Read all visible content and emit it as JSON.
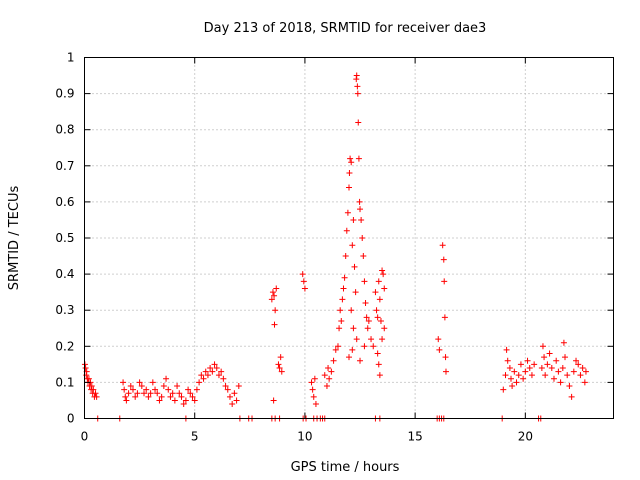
{
  "chart_data": {
    "type": "scatter",
    "title": "Day 213 of 2018, SRMTID for receiver dae3",
    "xlabel": "GPS time / hours",
    "ylabel": "SRMTID / TECUs",
    "xlim": [
      0,
      24
    ],
    "ylim": [
      0,
      1
    ],
    "xticks": [
      0,
      5,
      10,
      15,
      20
    ],
    "yticks": [
      0,
      0.1,
      0.2,
      0.3,
      0.4,
      0.5,
      0.6,
      0.7,
      0.8,
      0.9,
      1
    ],
    "marker": "+",
    "color": "#ff0000",
    "grid": true,
    "series": [
      {
        "name": "SRMTID",
        "points": [
          [
            0.02,
            0.15
          ],
          [
            0.05,
            0.14
          ],
          [
            0.08,
            0.12
          ],
          [
            0.1,
            0.13
          ],
          [
            0.13,
            0.11
          ],
          [
            0.16,
            0.1
          ],
          [
            0.2,
            0.11
          ],
          [
            0.23,
            0.09
          ],
          [
            0.27,
            0.1
          ],
          [
            0.3,
            0.08
          ],
          [
            0.33,
            0.09
          ],
          [
            0.37,
            0.07
          ],
          [
            0.4,
            0.08
          ],
          [
            0.45,
            0.06
          ],
          [
            0.5,
            0.07
          ],
          [
            0.55,
            0.06
          ],
          [
            0.6,
            0
          ],
          [
            1.6,
            0
          ],
          [
            1.75,
            0.1
          ],
          [
            1.8,
            0.08
          ],
          [
            1.85,
            0.06
          ],
          [
            1.9,
            0.05
          ],
          [
            2.0,
            0.07
          ],
          [
            2.1,
            0.09
          ],
          [
            2.2,
            0.08
          ],
          [
            2.3,
            0.06
          ],
          [
            2.4,
            0.07
          ],
          [
            2.5,
            0.1
          ],
          [
            2.6,
            0.09
          ],
          [
            2.7,
            0.07
          ],
          [
            2.8,
            0.08
          ],
          [
            2.9,
            0.06
          ],
          [
            3.0,
            0.07
          ],
          [
            3.1,
            0.1
          ],
          [
            3.2,
            0.08
          ],
          [
            3.3,
            0.07
          ],
          [
            3.4,
            0.05
          ],
          [
            3.5,
            0.06
          ],
          [
            3.6,
            0.09
          ],
          [
            3.7,
            0.11
          ],
          [
            3.8,
            0.08
          ],
          [
            3.9,
            0.06
          ],
          [
            4.0,
            0.07
          ],
          [
            4.1,
            0.05
          ],
          [
            4.2,
            0.09
          ],
          [
            4.3,
            0.07
          ],
          [
            4.4,
            0.06
          ],
          [
            4.5,
            0.04
          ],
          [
            4.6,
            0.05
          ],
          [
            4.6,
            0
          ],
          [
            4.7,
            0.08
          ],
          [
            4.8,
            0.07
          ],
          [
            4.9,
            0.06
          ],
          [
            5.0,
            0.05
          ],
          [
            5.1,
            0.08
          ],
          [
            5.2,
            0.1
          ],
          [
            5.3,
            0.12
          ],
          [
            5.4,
            0.11
          ],
          [
            5.5,
            0.13
          ],
          [
            5.6,
            0.12
          ],
          [
            5.7,
            0.14
          ],
          [
            5.8,
            0.13
          ],
          [
            5.9,
            0.15
          ],
          [
            6.0,
            0.14
          ],
          [
            6.1,
            0.12
          ],
          [
            6.2,
            0.13
          ],
          [
            6.3,
            0.11
          ],
          [
            6.4,
            0.09
          ],
          [
            6.5,
            0.08
          ],
          [
            6.6,
            0.06
          ],
          [
            6.7,
            0.04
          ],
          [
            6.8,
            0.07
          ],
          [
            6.9,
            0.05
          ],
          [
            7.0,
            0.09
          ],
          [
            7.05,
            0
          ],
          [
            7.45,
            0
          ],
          [
            7.6,
            0
          ],
          [
            8.5,
            0.33
          ],
          [
            8.55,
            0.35
          ],
          [
            8.6,
            0.34
          ],
          [
            8.65,
            0.3
          ],
          [
            8.7,
            0.36
          ],
          [
            8.62,
            0.26
          ],
          [
            8.58,
            0.05
          ],
          [
            8.5,
            0
          ],
          [
            8.65,
            0
          ],
          [
            8.8,
            0.15
          ],
          [
            8.85,
            0.14
          ],
          [
            8.9,
            0.17
          ],
          [
            8.95,
            0.13
          ],
          [
            8.85,
            0
          ],
          [
            9.9,
            0.4
          ],
          [
            9.95,
            0.38
          ],
          [
            10.0,
            0.36
          ],
          [
            9.92,
            0
          ],
          [
            10.05,
            0
          ],
          [
            10.3,
            0.1
          ],
          [
            10.35,
            0.08
          ],
          [
            10.4,
            0.06
          ],
          [
            10.45,
            0.11
          ],
          [
            10.5,
            0.04
          ],
          [
            10.4,
            0
          ],
          [
            10.55,
            0
          ],
          [
            10.7,
            0
          ],
          [
            10.8,
            0
          ],
          [
            10.9,
            0
          ],
          [
            10.9,
            0.12
          ],
          [
            11.0,
            0.09
          ],
          [
            11.05,
            0.14
          ],
          [
            11.1,
            0.11
          ],
          [
            11.2,
            0.13
          ],
          [
            11.3,
            0.16
          ],
          [
            11.4,
            0.19
          ],
          [
            11.5,
            0.2
          ],
          [
            11.55,
            0.25
          ],
          [
            11.6,
            0.3
          ],
          [
            11.65,
            0.27
          ],
          [
            11.7,
            0.33
          ],
          [
            11.75,
            0.36
          ],
          [
            11.8,
            0.39
          ],
          [
            11.85,
            0.45
          ],
          [
            11.9,
            0.52
          ],
          [
            11.95,
            0.57
          ],
          [
            12.0,
            0.64
          ],
          [
            12.02,
            0.68
          ],
          [
            12.05,
            0.72
          ],
          [
            12.1,
            0.71
          ],
          [
            12.15,
            0.48
          ],
          [
            12.2,
            0.55
          ],
          [
            12.25,
            0.42
          ],
          [
            12.3,
            0.35
          ],
          [
            12.33,
            0.94
          ],
          [
            12.35,
            0.95
          ],
          [
            12.38,
            0.92
          ],
          [
            12.4,
            0.9
          ],
          [
            12.42,
            0.82
          ],
          [
            12.45,
            0.72
          ],
          [
            12.48,
            0.6
          ],
          [
            12.5,
            0.58
          ],
          [
            12.55,
            0.55
          ],
          [
            12.6,
            0.5
          ],
          [
            12.65,
            0.45
          ],
          [
            12.7,
            0.38
          ],
          [
            12.75,
            0.32
          ],
          [
            12.8,
            0.28
          ],
          [
            12.85,
            0.25
          ],
          [
            12.1,
            0.3
          ],
          [
            12.2,
            0.25
          ],
          [
            12.0,
            0.17
          ],
          [
            12.15,
            0.19
          ],
          [
            12.35,
            0.22
          ],
          [
            12.5,
            0.16
          ],
          [
            12.7,
            0.2
          ],
          [
            12.9,
            0.27
          ],
          [
            13.0,
            0.22
          ],
          [
            13.1,
            0.2
          ],
          [
            13.2,
            0.35
          ],
          [
            13.25,
            0.3
          ],
          [
            13.3,
            0.28
          ],
          [
            13.35,
            0.38
          ],
          [
            13.4,
            0.33
          ],
          [
            13.45,
            0.27
          ],
          [
            13.5,
            0.41
          ],
          [
            13.55,
            0.4
          ],
          [
            13.6,
            0.36
          ],
          [
            13.3,
            0.18
          ],
          [
            13.35,
            0.15
          ],
          [
            13.4,
            0.12
          ],
          [
            13.5,
            0.22
          ],
          [
            13.6,
            0.25
          ],
          [
            13.2,
            0
          ],
          [
            13.4,
            0
          ],
          [
            16.05,
            0.22
          ],
          [
            16.1,
            0.19
          ],
          [
            16.25,
            0.48
          ],
          [
            16.3,
            0.44
          ],
          [
            16.32,
            0.38
          ],
          [
            16.35,
            0.28
          ],
          [
            16.38,
            0.17
          ],
          [
            16.4,
            0.13
          ],
          [
            16.0,
            0
          ],
          [
            16.1,
            0
          ],
          [
            16.2,
            0
          ],
          [
            16.3,
            0
          ],
          [
            18.95,
            0
          ],
          [
            19.0,
            0.08
          ],
          [
            19.1,
            0.12
          ],
          [
            19.15,
            0.19
          ],
          [
            19.2,
            0.16
          ],
          [
            19.3,
            0.14
          ],
          [
            19.35,
            0.11
          ],
          [
            19.4,
            0.09
          ],
          [
            19.5,
            0.13
          ],
          [
            19.6,
            0.1
          ],
          [
            19.7,
            0.12
          ],
          [
            19.8,
            0.15
          ],
          [
            19.9,
            0.11
          ],
          [
            20.0,
            0.13
          ],
          [
            20.1,
            0.16
          ],
          [
            20.2,
            0.14
          ],
          [
            20.3,
            0.12
          ],
          [
            20.4,
            0.15
          ],
          [
            20.6,
            0
          ],
          [
            20.7,
            0
          ],
          [
            20.75,
            0.14
          ],
          [
            20.8,
            0.2
          ],
          [
            20.85,
            0.17
          ],
          [
            20.9,
            0.12
          ],
          [
            21.0,
            0.15
          ],
          [
            21.1,
            0.18
          ],
          [
            21.2,
            0.14
          ],
          [
            21.3,
            0.11
          ],
          [
            21.4,
            0.16
          ],
          [
            21.5,
            0.13
          ],
          [
            21.6,
            0.1
          ],
          [
            21.7,
            0.14
          ],
          [
            21.75,
            0.21
          ],
          [
            21.8,
            0.17
          ],
          [
            21.9,
            0.12
          ],
          [
            22.0,
            0.09
          ],
          [
            22.1,
            0.06
          ],
          [
            22.2,
            0.13
          ],
          [
            22.3,
            0.16
          ],
          [
            22.4,
            0.15
          ],
          [
            22.5,
            0.12
          ],
          [
            22.6,
            0.14
          ],
          [
            22.7,
            0.1
          ],
          [
            22.75,
            0.13
          ]
        ]
      }
    ]
  }
}
